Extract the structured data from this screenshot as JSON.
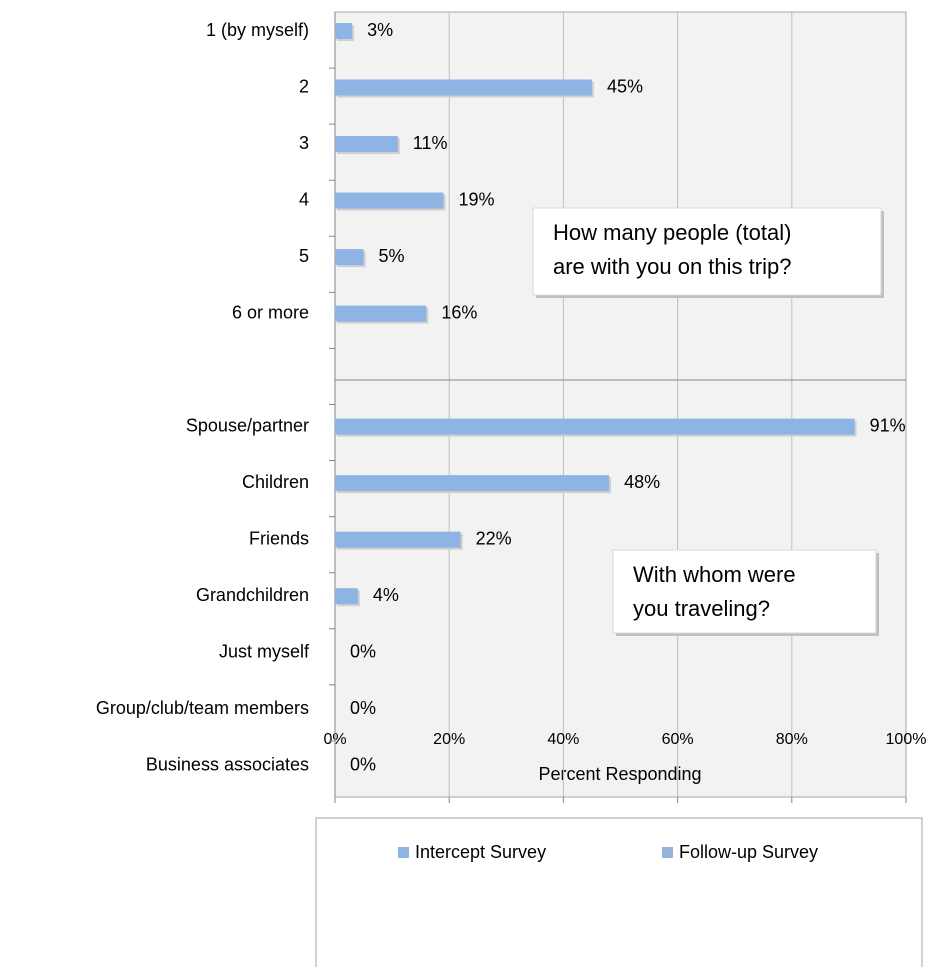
{
  "chart_data": {
    "type": "bar",
    "orientation": "horizontal",
    "categories": [
      "1 (by myself)",
      "2",
      "3",
      "4",
      "5",
      "6 or more",
      null,
      "Spouse/partner",
      "Children",
      "Friends",
      "Grandchildren",
      "Just myself",
      "Group/club/team members",
      "Business associates"
    ],
    "series": [
      {
        "name": "Intercept Survey",
        "color": "#8db4e2",
        "values": [
          3,
          45,
          11,
          19,
          5,
          16,
          null,
          91,
          48,
          22,
          4,
          0,
          0,
          0
        ],
        "value_labels": [
          "3%",
          "45%",
          "11%",
          "19%",
          "5%",
          "16%",
          null,
          "91%",
          "48%",
          "22%",
          "4%",
          "0%",
          "0%",
          "0%"
        ]
      },
      {
        "name": "Follow-up Survey",
        "color": "#95b3d7",
        "values": [
          null,
          null,
          null,
          null,
          null,
          null,
          null,
          null,
          null,
          null,
          null,
          null,
          null,
          null
        ]
      }
    ],
    "xlim": [
      0,
      100
    ],
    "xticks": [
      {
        "value": 0,
        "label": "0%"
      },
      {
        "value": 20,
        "label": "20%"
      },
      {
        "value": 40,
        "label": "40%"
      },
      {
        "value": 60,
        "label": "60%"
      },
      {
        "value": 80,
        "label": "80%"
      },
      {
        "value": 100,
        "label": "100%"
      }
    ],
    "xlabel": "Percent Responding",
    "grid": true,
    "annotations": [
      {
        "lines": [
          "How many people (total)",
          "are with you on this trip?"
        ]
      },
      {
        "lines": [
          "With whom were",
          "you traveling?"
        ]
      }
    ]
  }
}
